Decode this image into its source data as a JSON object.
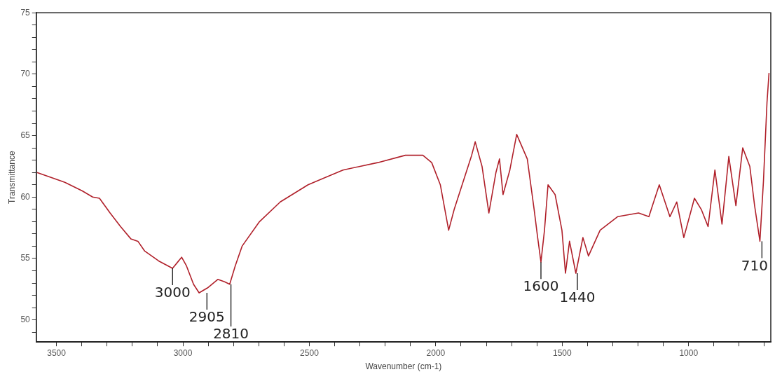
{
  "chart_data": {
    "type": "line",
    "xlabel": "Wavenumber (cm-1)",
    "ylabel": "Transmittance",
    "xlim": [
      3580,
      675
    ],
    "ylim": [
      48.2,
      75
    ],
    "xticks": [
      3500,
      {
        "value": 3400,
        "label": null
      },
      {
        "value": 3300,
        "label": null
      },
      {
        "value": 3200,
        "label": null
      },
      {
        "value": 3100,
        "label": null
      },
      3000,
      {
        "value": 2900,
        "label": null
      },
      {
        "value": 2800,
        "label": null
      },
      {
        "value": 2700,
        "label": null
      },
      {
        "value": 2600,
        "label": null
      },
      2500,
      {
        "value": 2400,
        "label": null
      },
      {
        "value": 2300,
        "label": null
      },
      {
        "value": 2200,
        "label": null
      },
      {
        "value": 2100,
        "label": null
      },
      2000,
      {
        "value": 1900,
        "label": null
      },
      {
        "value": 1800,
        "label": null
      },
      {
        "value": 1700,
        "label": null
      },
      {
        "value": 1600,
        "label": null
      },
      1500,
      {
        "value": 1400,
        "label": null
      },
      {
        "value": 1300,
        "label": null
      },
      {
        "value": 1200,
        "label": null
      },
      {
        "value": 1100,
        "label": null
      },
      1000,
      {
        "value": 900,
        "label": null
      },
      {
        "value": 800,
        "label": null
      },
      {
        "value": 700,
        "label": null
      }
    ],
    "yticks": [
      {
        "value": 49,
        "label": null
      },
      50,
      {
        "value": 51,
        "label": null
      },
      {
        "value": 52,
        "label": null
      },
      {
        "value": 53,
        "label": null
      },
      {
        "value": 54,
        "label": null
      },
      55,
      {
        "value": 56,
        "label": null
      },
      {
        "value": 57,
        "label": null
      },
      {
        "value": 58,
        "label": null
      },
      {
        "value": 59,
        "label": null
      },
      60,
      {
        "value": 61,
        "label": null
      },
      {
        "value": 62,
        "label": null
      },
      {
        "value": 63,
        "label": null
      },
      {
        "value": 64,
        "label": null
      },
      65,
      {
        "value": 66,
        "label": null
      },
      {
        "value": 67,
        "label": null
      },
      {
        "value": 68,
        "label": null
      },
      {
        "value": 69,
        "label": null
      },
      70,
      {
        "value": 71,
        "label": null
      },
      {
        "value": 72,
        "label": null
      },
      {
        "value": 73,
        "label": null
      },
      {
        "value": 74,
        "label": null
      },
      75
    ],
    "series": [
      {
        "color": "#b0202a",
        "x": [
          3577,
          3467,
          3398,
          3357,
          3330,
          3288,
          3247,
          3206,
          3178,
          3151,
          3096,
          3041,
          3005,
          2986,
          2958,
          2936,
          2903,
          2862,
          2835,
          2815,
          2793,
          2766,
          2697,
          2615,
          2505,
          2367,
          2230,
          2120,
          2051,
          2016,
          1982,
          1949,
          1927,
          1858,
          1844,
          1817,
          1790,
          1762,
          1748,
          1734,
          1707,
          1680,
          1638,
          1611,
          1597,
          1584,
          1570,
          1556,
          1528,
          1501,
          1487,
          1471,
          1446,
          1418,
          1396,
          1350,
          1281,
          1198,
          1157,
          1143,
          1116,
          1074,
          1047,
          1019,
          977,
          950,
          923,
          896,
          868,
          841,
          813,
          786,
          758,
          739,
          718,
          704,
          690,
          682
        ],
        "values": [
          62.0,
          61.2,
          60.5,
          60.0,
          59.9,
          58.7,
          57.6,
          56.6,
          56.4,
          55.6,
          54.8,
          54.2,
          55.1,
          54.4,
          52.9,
          52.2,
          52.6,
          53.3,
          53.1,
          52.9,
          54.4,
          56.0,
          58.0,
          59.6,
          61.0,
          62.2,
          62.8,
          63.4,
          63.4,
          62.8,
          61.0,
          57.3,
          59.0,
          63.4,
          64.5,
          62.5,
          58.7,
          62.0,
          63.1,
          60.2,
          62.2,
          65.1,
          63.1,
          59.0,
          56.7,
          54.7,
          57.3,
          61.0,
          60.2,
          57.3,
          53.8,
          56.4,
          53.8,
          56.7,
          55.2,
          57.3,
          58.4,
          58.7,
          58.4,
          59.3,
          61.0,
          58.4,
          59.6,
          56.7,
          59.9,
          59.0,
          57.6,
          62.2,
          57.8,
          63.3,
          59.3,
          64.0,
          62.5,
          59.3,
          56.4,
          61.3,
          67.7,
          70.1
        ]
      }
    ],
    "annotations": [
      {
        "text": "3000",
        "x": 3041,
        "y": 54.2
      },
      {
        "text": "2905",
        "x": 2905,
        "y": 52.2
      },
      {
        "text": "2810",
        "x": 2810,
        "y": 52.9
      },
      {
        "text": "1600",
        "x": 1584,
        "y": 54.7
      },
      {
        "text": "1440",
        "x": 1440,
        "y": 53.8
      },
      {
        "text": "710",
        "x": 710,
        "y": 56.4
      }
    ]
  }
}
